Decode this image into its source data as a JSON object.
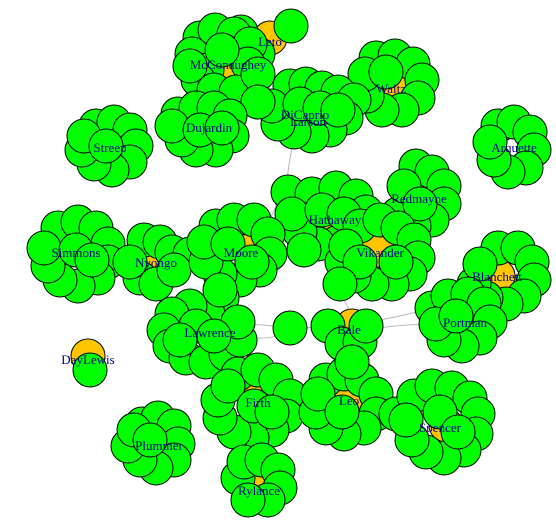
{
  "colors": {
    "leaf": "#00ff00",
    "hub": "#ffc600",
    "label": "#00008b",
    "edge": "#b8b8b8"
  },
  "nodes": [
    {
      "key": "leto",
      "label": "Leto"
    },
    {
      "key": "mcconaughey",
      "label": "McConaughey"
    },
    {
      "key": "waltz",
      "label": "Waltz"
    },
    {
      "key": "dicaprio",
      "label": "DiCaprio"
    },
    {
      "key": "larson",
      "label": "Larson"
    },
    {
      "key": "dujardin",
      "label": "Dujardin"
    },
    {
      "key": "streep",
      "label": "Streep"
    },
    {
      "key": "arquette",
      "label": "Arquette"
    },
    {
      "key": "redmayne",
      "label": "Redmayne"
    },
    {
      "key": "hathaway",
      "label": "Hathaway"
    },
    {
      "key": "vikander",
      "label": "Vikander"
    },
    {
      "key": "simmons",
      "label": "Simmons"
    },
    {
      "key": "nyongo",
      "label": "Nyongo"
    },
    {
      "key": "moore",
      "label": "Moore"
    },
    {
      "key": "blanchett",
      "label": "Blanchett"
    },
    {
      "key": "portman",
      "label": "Portman"
    },
    {
      "key": "lawrence",
      "label": "Lawrence"
    },
    {
      "key": "bale",
      "label": "Bale"
    },
    {
      "key": "daylewis",
      "label": "DayLewis"
    },
    {
      "key": "firth",
      "label": "Firth"
    },
    {
      "key": "leo",
      "label": "Leo"
    },
    {
      "key": "spencer",
      "label": "Spencer"
    },
    {
      "key": "plummer",
      "label": "Plummer"
    },
    {
      "key": "rylance",
      "label": "Rylance"
    }
  ]
}
